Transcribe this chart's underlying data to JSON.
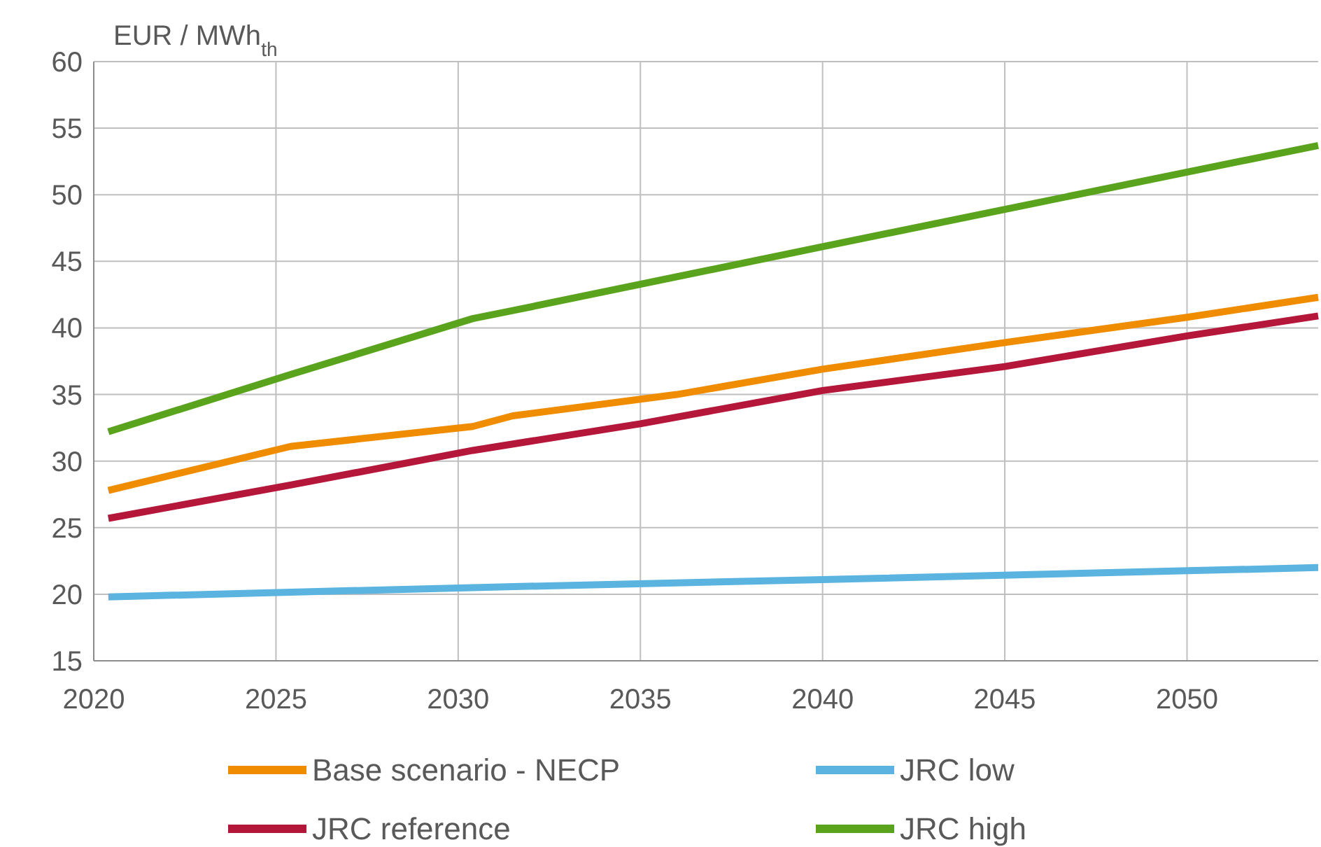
{
  "chart_data": {
    "type": "line",
    "ylabel": "EUR / MWh$_{th}$",
    "xlim": [
      2020,
      2053.6
    ],
    "ylim": [
      15,
      60
    ],
    "xticks": [
      2020,
      2025,
      2030,
      2035,
      2040,
      2045,
      2050
    ],
    "yticks": [
      15,
      20,
      25,
      30,
      35,
      40,
      45,
      50,
      55,
      60
    ],
    "grid": true,
    "legend": "bottom",
    "marker": "none",
    "line_style": "solid",
    "series": [
      {
        "name": "Base scenario - NECP",
        "color": "#f08c00",
        "x": [
          2020.4,
          2025.4,
          2030.4,
          2031.5,
          2036,
          2040,
          2045,
          2050,
          2053.6
        ],
        "values": [
          27.8,
          31.1,
          32.6,
          33.4,
          35.0,
          36.9,
          38.9,
          40.8,
          42.3
        ]
      },
      {
        "name": "JRC low",
        "color": "#5bb4e0",
        "x": [
          2020.4,
          2030.4,
          2040,
          2053.6
        ],
        "values": [
          19.8,
          20.5,
          21.1,
          22.0
        ]
      },
      {
        "name": "JRC reference",
        "color": "#b5173a",
        "x": [
          2020.4,
          2025.4,
          2030.4,
          2035,
          2040,
          2045,
          2050,
          2053.6
        ],
        "values": [
          25.7,
          28.2,
          30.8,
          32.8,
          35.3,
          37.1,
          39.4,
          40.9
        ]
      },
      {
        "name": "JRC high",
        "color": "#5aa41d",
        "x": [
          2020.4,
          2025.4,
          2030.4,
          2031.5,
          2040,
          2045,
          2050,
          2053.6
        ],
        "values": [
          32.2,
          36.5,
          40.7,
          41.3,
          46.1,
          48.9,
          51.7,
          53.7
        ]
      }
    ]
  }
}
